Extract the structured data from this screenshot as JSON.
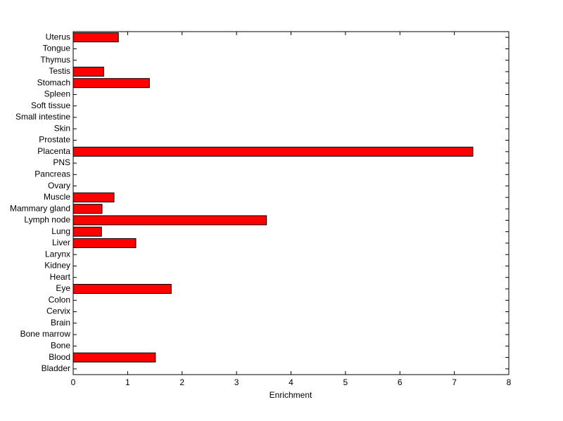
{
  "chart_data": {
    "type": "barh",
    "xlabel": "Enrichment",
    "categories": [
      "Bladder",
      "Blood",
      "Bone",
      "Bone marrow",
      "Brain",
      "Cervix",
      "Colon",
      "Eye",
      "Heart",
      "Kidney",
      "Larynx",
      "Liver",
      "Lung",
      "Lymph node",
      "Mammary gland",
      "Muscle",
      "Ovary",
      "Pancreas",
      "PNS",
      "Placenta",
      "Prostate",
      "Skin",
      "Small intestine",
      "Soft tissue",
      "Spleen",
      "Stomach",
      "Testis",
      "Thymus",
      "Tongue",
      "Uterus"
    ],
    "values": [
      0,
      1.51,
      0,
      0,
      0,
      0,
      0,
      1.8,
      0,
      0,
      0,
      1.15,
      0.52,
      3.55,
      0.53,
      0.75,
      0,
      0,
      0,
      7.34,
      0,
      0,
      0,
      0,
      0,
      1.4,
      0.56,
      0,
      0,
      0.83
    ],
    "color": "#ff0000",
    "xlim": [
      0,
      8
    ],
    "xticks": [
      0,
      1,
      2,
      3,
      4,
      5,
      6,
      7,
      8
    ]
  }
}
